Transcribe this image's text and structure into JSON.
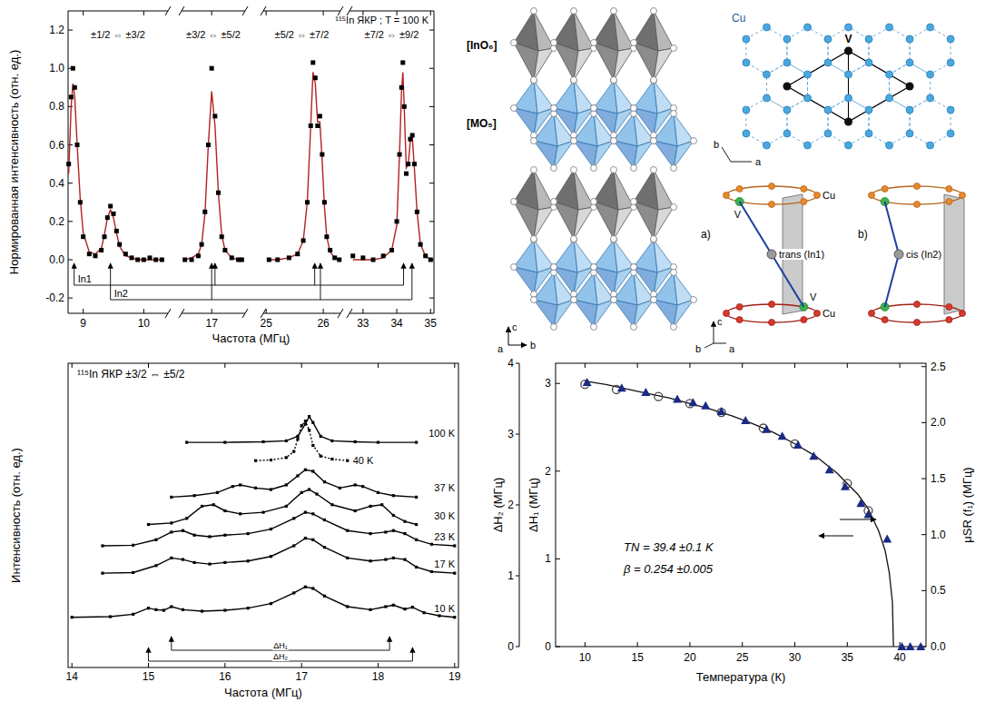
{
  "chart_data": [
    {
      "type": "scatter",
      "title": "¹¹⁵In ЯКР ; T = 100 K",
      "x_label": "Частота (МГц)",
      "y_label": "Нормированная интенсивность (отн. ед.)",
      "ylim": [
        -0.28,
        1.3
      ],
      "yticks": [
        -0.2,
        {
          "value": 0,
          "label": "0.0"
        },
        0.2,
        0.4,
        0.6,
        0.8,
        {
          "value": 1,
          "label": "1.0"
        },
        1.2
      ],
      "segments": [
        {
          "label": "±1/2 ⇔ ±3/2",
          "xlim": [
            8.75,
            10.4
          ],
          "xticks": [
            9,
            10
          ],
          "x": [
            8.76,
            8.8,
            8.83,
            8.86,
            8.9,
            8.95,
            9.0,
            9.1,
            9.2,
            9.3,
            9.35,
            9.4,
            9.45,
            9.5,
            9.55,
            9.6,
            9.7,
            9.8,
            9.9,
            10.0,
            10.1,
            10.2,
            10.3
          ],
          "series": [
            {
              "type": "scatter",
              "marker": "square",
              "color": "#000000",
              "values": [
                0.5,
                0.85,
                1.0,
                0.9,
                0.6,
                0.3,
                0.12,
                0.03,
                0.02,
                0.05,
                0.12,
                0.22,
                0.28,
                0.24,
                0.15,
                0.08,
                0.03,
                0.01,
                0.0,
                0.0,
                0.01,
                0.0,
                0.0
              ]
            },
            {
              "type": "line",
              "line_style": "solid",
              "color": "#b22222",
              "values": [
                0.45,
                0.8,
                0.92,
                0.85,
                0.6,
                0.32,
                0.14,
                0.04,
                0.03,
                0.06,
                0.13,
                0.22,
                0.26,
                0.22,
                0.14,
                0.07,
                0.02,
                0.01,
                0.0,
                0.0,
                0.0,
                0.0,
                0.0
              ]
            }
          ]
        },
        {
          "label": "±3/2 ⇔ ±5/2",
          "xlim": [
            16.55,
            17.5
          ],
          "xticks": [
            17
          ],
          "x": [
            16.6,
            16.7,
            16.8,
            16.85,
            16.9,
            16.95,
            17.0,
            17.05,
            17.1,
            17.15,
            17.2,
            17.3,
            17.4,
            17.45
          ],
          "series": [
            {
              "type": "scatter",
              "marker": "square",
              "color": "#000000",
              "values": [
                0,
                0,
                0.02,
                0.08,
                0.25,
                0.6,
                1.0,
                0.75,
                0.35,
                0.12,
                0.05,
                0.01,
                0,
                0
              ]
            },
            {
              "type": "line",
              "line_style": "solid",
              "color": "#b22222",
              "values": [
                0,
                0.01,
                0.03,
                0.08,
                0.24,
                0.6,
                0.88,
                0.7,
                0.35,
                0.13,
                0.05,
                0.01,
                0,
                0
              ]
            }
          ]
        },
        {
          "label": "±5/2 ⇔ ±7/2",
          "xlim": [
            24.95,
            26.3
          ],
          "xticks": [
            25,
            26
          ],
          "x": [
            25.05,
            25.2,
            25.4,
            25.55,
            25.65,
            25.72,
            25.78,
            25.82,
            25.86,
            25.9,
            25.94,
            25.98,
            26.02,
            26.06,
            26.12,
            26.2,
            26.28
          ],
          "series": [
            {
              "type": "scatter",
              "marker": "square",
              "color": "#000000",
              "values": [
                0,
                0,
                0.01,
                0.03,
                0.1,
                0.3,
                0.7,
                1.03,
                0.95,
                0.7,
                0.75,
                0.55,
                0.3,
                0.12,
                0.05,
                0.01,
                0
              ]
            },
            {
              "type": "line",
              "line_style": "solid",
              "color": "#b22222",
              "values": [
                0,
                0,
                0.01,
                0.03,
                0.1,
                0.3,
                0.7,
                0.98,
                0.92,
                0.72,
                0.72,
                0.52,
                0.28,
                0.12,
                0.04,
                0.01,
                0
              ]
            }
          ]
        },
        {
          "label": "±7/2 ⇔ ±9/2",
          "xlim": [
            32.6,
            35.1
          ],
          "xticks": [
            33,
            34,
            35
          ],
          "x": [
            32.7,
            33.0,
            33.3,
            33.6,
            33.85,
            34.0,
            34.08,
            34.14,
            34.18,
            34.22,
            34.28,
            34.34,
            34.4,
            34.46,
            34.52,
            34.6,
            34.7,
            34.85,
            35.0
          ],
          "series": [
            {
              "type": "scatter",
              "marker": "square",
              "color": "#000000",
              "values": [
                0.02,
                0.01,
                0.0,
                0.02,
                0.05,
                0.2,
                0.55,
                0.9,
                1.03,
                0.8,
                0.45,
                0.5,
                0.63,
                0.65,
                0.5,
                0.25,
                0.08,
                0.02,
                0
              ]
            },
            {
              "type": "line",
              "line_style": "solid",
              "color": "#b22222",
              "values": [
                0,
                0,
                0,
                0.01,
                0.05,
                0.18,
                0.55,
                0.88,
                0.98,
                0.8,
                0.48,
                0.5,
                0.62,
                0.64,
                0.48,
                0.25,
                0.08,
                0.02,
                0
              ]
            }
          ]
        }
      ],
      "sites": [
        {
          "label": "In1",
          "x": [
            8.85,
            17.05,
            25.85,
            34.2
          ]
        },
        {
          "label": "In2",
          "x": [
            9.45,
            17.0,
            25.95,
            34.45
          ]
        }
      ]
    },
    {
      "type": "line",
      "title": "¹¹⁵In ЯКР  ±3/2 ⇔ ±5/2",
      "x_label": "Частота (МГц)",
      "y_label": "Интенсивность (отн. ед.)",
      "xlim": [
        13.95,
        19.05
      ],
      "xticks": [
        14,
        15,
        16,
        17,
        18,
        19
      ],
      "ylim": [
        0,
        10
      ],
      "tick_labels": "x",
      "series": [
        {
          "name": "100 K",
          "marker": "square",
          "line_style": "solid",
          "color": "#000000",
          "x": [
            15.5,
            16.0,
            16.5,
            16.8,
            16.95,
            17.05,
            17.1,
            17.15,
            17.25,
            17.4,
            17.7,
            18.0,
            18.5
          ],
          "values": [
            7.4,
            7.4,
            7.42,
            7.45,
            7.6,
            8.0,
            8.25,
            8.05,
            7.6,
            7.45,
            7.42,
            7.4,
            7.4
          ]
        },
        {
          "name": "40 K",
          "marker": "square",
          "line_style": "dotted",
          "color": "#000000",
          "x": [
            16.4,
            16.6,
            16.8,
            16.9,
            16.95,
            17.0,
            17.05,
            17.1,
            17.15,
            17.25,
            17.4,
            17.6
          ],
          "values": [
            6.8,
            6.82,
            6.9,
            7.1,
            7.5,
            7.95,
            8.1,
            7.8,
            7.3,
            6.95,
            6.85,
            6.8
          ]
        },
        {
          "name": "37 K",
          "marker": "square",
          "line_style": "solid",
          "color": "#000000",
          "x": [
            15.3,
            15.6,
            15.9,
            16.1,
            16.2,
            16.4,
            16.6,
            16.8,
            16.95,
            17.05,
            17.15,
            17.3,
            17.5,
            17.7,
            17.8,
            18.0,
            18.2,
            18.5
          ],
          "values": [
            5.6,
            5.65,
            5.75,
            5.95,
            6.0,
            5.9,
            5.85,
            6.0,
            6.3,
            6.5,
            6.45,
            6.1,
            5.9,
            6.0,
            5.95,
            5.75,
            5.65,
            5.6
          ]
        },
        {
          "name": "30 K",
          "marker": "square",
          "line_style": "solid",
          "color": "#000000",
          "x": [
            15.0,
            15.3,
            15.5,
            15.7,
            15.85,
            16.0,
            16.2,
            16.5,
            16.8,
            17.0,
            17.1,
            17.2,
            17.4,
            17.7,
            17.9,
            18.05,
            18.2,
            18.35,
            18.5
          ],
          "values": [
            4.7,
            4.75,
            4.9,
            5.3,
            5.35,
            5.15,
            5.05,
            5.1,
            5.3,
            5.75,
            5.85,
            5.7,
            5.35,
            5.15,
            5.3,
            5.35,
            5.0,
            4.8,
            4.7
          ]
        },
        {
          "name": "23 K",
          "marker": "square",
          "line_style": "solid",
          "color": "#000000",
          "x": [
            14.4,
            14.8,
            15.1,
            15.3,
            15.45,
            15.6,
            15.8,
            16.0,
            16.3,
            16.6,
            16.9,
            17.05,
            17.15,
            17.3,
            17.6,
            17.9,
            18.1,
            18.2,
            18.35,
            18.5,
            18.7,
            19.0
          ],
          "values": [
            4.0,
            4.02,
            4.2,
            4.45,
            4.5,
            4.35,
            4.3,
            4.35,
            4.4,
            4.55,
            4.9,
            5.1,
            5.05,
            4.85,
            4.5,
            4.4,
            4.45,
            4.5,
            4.4,
            4.2,
            4.05,
            4.0
          ]
        },
        {
          "name": "17 K",
          "marker": "square",
          "line_style": "solid",
          "color": "#000000",
          "x": [
            14.4,
            14.8,
            15.1,
            15.3,
            15.45,
            15.6,
            15.8,
            16.0,
            16.3,
            16.6,
            16.9,
            17.05,
            17.15,
            17.3,
            17.6,
            17.9,
            18.1,
            18.2,
            18.35,
            18.5,
            18.7,
            19.0
          ],
          "values": [
            3.1,
            3.12,
            3.35,
            3.6,
            3.55,
            3.45,
            3.4,
            3.45,
            3.5,
            3.65,
            4.0,
            4.25,
            4.2,
            3.95,
            3.6,
            3.5,
            3.55,
            3.6,
            3.55,
            3.3,
            3.15,
            3.1
          ]
        },
        {
          "name": "10 K",
          "marker": "square",
          "line_style": "solid",
          "color": "#000000",
          "x": [
            14.0,
            14.5,
            14.8,
            15.0,
            15.1,
            15.2,
            15.3,
            15.45,
            15.7,
            16.0,
            16.3,
            16.6,
            16.9,
            17.05,
            17.15,
            17.3,
            17.6,
            17.9,
            18.1,
            18.2,
            18.35,
            18.45,
            18.6,
            18.8,
            19.0
          ],
          "values": [
            1.65,
            1.67,
            1.75,
            1.95,
            1.9,
            1.88,
            2.0,
            1.9,
            1.85,
            1.88,
            1.95,
            2.1,
            2.45,
            2.65,
            2.6,
            2.35,
            2.0,
            1.9,
            2.0,
            2.05,
            1.92,
            1.98,
            1.8,
            1.7,
            1.65
          ]
        }
      ],
      "splittings": [
        {
          "label": "ΔH₁",
          "from": 15.3,
          "to": 18.15
        },
        {
          "label": "ΔH₂",
          "from": 15.0,
          "to": 18.45
        }
      ]
    },
    {
      "type": "scatter",
      "x_label": "Температура (К)",
      "xlim": [
        7.2,
        42.5
      ],
      "xticks": [
        10,
        15,
        20,
        25,
        30,
        35,
        40
      ],
      "y_label": "ΔH₁ (МГц)",
      "ylim": [
        0,
        3.23
      ],
      "yticks": [
        0,
        1,
        2,
        3
      ],
      "outer_axis": {
        "label": "ΔH₂ (МГц)",
        "ylim": [
          0,
          4
        ],
        "yticks": [
          0,
          1,
          2,
          3,
          4
        ]
      },
      "y2_label": "μSR (f₁) (МГц)",
      "y2lim": [
        0,
        2.53
      ],
      "y2ticks": [
        {
          "value": 0,
          "label": "0.0"
        },
        0.5,
        {
          "value": 1,
          "label": "1.0"
        },
        1.5,
        {
          "value": 2,
          "label": "2.0"
        },
        2.5
      ],
      "series": [
        {
          "type": "scatter",
          "marker": "circle",
          "color": "#444444",
          "x": [
            10,
            13,
            17,
            20,
            23,
            27,
            30,
            35,
            37
          ],
          "values": [
            2.99,
            2.93,
            2.85,
            2.77,
            2.67,
            2.49,
            2.31,
            1.86,
            1.55
          ]
        },
        {
          "type": "scatter",
          "marker": "triangle",
          "color": "#1b2a85",
          "axis": "y2",
          "x": [
            10.2,
            13.5,
            15.8,
            18.8,
            20.3,
            21.5,
            23,
            25.3,
            27.3,
            28.8,
            30.3,
            31.8,
            33.3,
            34.8,
            36.3,
            37,
            38.8,
            40.2,
            41,
            42
          ],
          "values": [
            2.36,
            2.31,
            2.27,
            2.21,
            2.18,
            2.15,
            2.1,
            2.02,
            1.94,
            1.88,
            1.8,
            1.7,
            1.58,
            1.43,
            1.28,
            1.18,
            0.96,
            0,
            0,
            0
          ]
        },
        {
          "type": "line",
          "line_style": "solid",
          "color": "#111111",
          "axis": "y2",
          "x": [
            10,
            12,
            14,
            16,
            18,
            20,
            22,
            24,
            26,
            28,
            30,
            32,
            34,
            36,
            37,
            38,
            38.6,
            39,
            39.3,
            39.4
          ],
          "values": [
            2.37,
            2.34,
            2.3,
            2.26,
            2.22,
            2.17,
            2.12,
            2.06,
            1.99,
            1.91,
            1.81,
            1.7,
            1.55,
            1.36,
            1.23,
            1.03,
            0.86,
            0.66,
            0.4,
            0
          ]
        }
      ],
      "annotations": [
        "TN = 39.4 ±0.1 K",
        "β = 0.254 ±0.005"
      ]
    }
  ],
  "structure": {
    "polyhedra": [
      "[InO₆]",
      "[MO₅]"
    ],
    "stack_axes": [
      "c",
      "a",
      "b"
    ],
    "lattice_labels": [
      "Cu",
      "V"
    ],
    "lattice_axes": [
      "b",
      "a"
    ],
    "sketches": [
      {
        "tag": "a)",
        "site": "trans (In1)",
        "atoms": [
          "V",
          "Cu",
          "V",
          "Cu"
        ]
      },
      {
        "tag": "b)",
        "site": "cis (In2)"
      }
    ],
    "sketch_axes": [
      "c",
      "b",
      "a"
    ]
  }
}
